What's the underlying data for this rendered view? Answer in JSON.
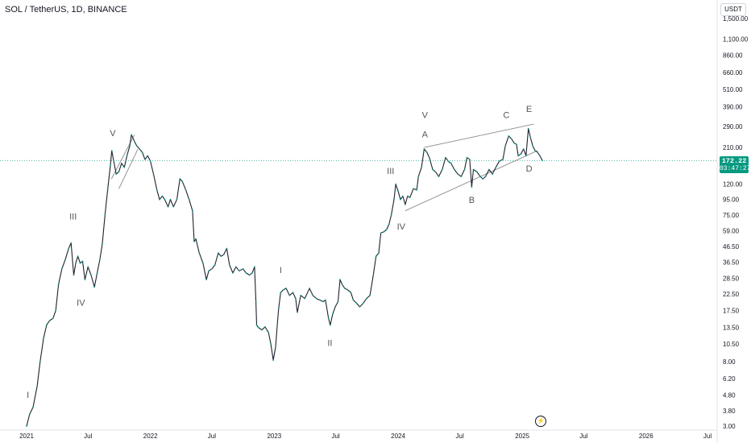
{
  "header": {
    "title": "SOL / TetherUS, 1D, BINANCE",
    "unit": "USDT"
  },
  "current_price": {
    "value": "172.22",
    "countdown": "03:47:27",
    "color": "#089981"
  },
  "colors": {
    "up": "#089981",
    "wave_label": "#555555",
    "trendline": "#8a8a8a",
    "axis_text": "#131722",
    "price_line": "#089981"
  },
  "icons": {
    "replay": "lightning-circle-icon"
  },
  "chart_data": {
    "type": "line",
    "scale": "log",
    "title": "",
    "xlabel": "",
    "ylabel": "",
    "ylim": [
      3.0,
      1500
    ],
    "xlim": [
      "2021-01-01",
      "2026-07-01"
    ],
    "grid": false,
    "x_ticks": [
      {
        "date": "2021-01-01",
        "label": "2021"
      },
      {
        "date": "2021-07-01",
        "label": "Jul"
      },
      {
        "date": "2022-01-01",
        "label": "2022"
      },
      {
        "date": "2022-07-01",
        "label": "Jul"
      },
      {
        "date": "2023-01-01",
        "label": "2023"
      },
      {
        "date": "2023-07-01",
        "label": "Jul"
      },
      {
        "date": "2024-01-01",
        "label": "2024"
      },
      {
        "date": "2024-07-01",
        "label": "Jul"
      },
      {
        "date": "2025-01-01",
        "label": "2025"
      },
      {
        "date": "2025-07-01",
        "label": "Jul"
      },
      {
        "date": "2026-01-01",
        "label": "2026"
      },
      {
        "date": "2026-07-01",
        "label": "Jul"
      }
    ],
    "y_ticks": [
      1500,
      1100,
      860,
      660,
      510,
      390,
      290,
      210,
      120,
      95,
      75,
      59,
      46.5,
      36.5,
      28.5,
      22.5,
      17.5,
      13.5,
      10.5,
      8.0,
      6.2,
      4.8,
      3.8,
      3.0
    ],
    "y_tick_labels": [
      "1,500.00",
      "1,100.00",
      "860.00",
      "660.00",
      "510.00",
      "390.00",
      "290.00",
      "210.00",
      "120.00",
      "95.00",
      "75.00",
      "59.00",
      "46.50",
      "36.50",
      "28.50",
      "22.50",
      "17.50",
      "13.50",
      "10.50",
      "8.00",
      "6.20",
      "4.80",
      "3.80",
      "3.00"
    ],
    "series": [
      {
        "values": [
          [
            "2021-01-01",
            3.0
          ],
          [
            "2021-01-10",
            3.6
          ],
          [
            "2021-01-20",
            4.0
          ],
          [
            "2021-02-01",
            5.5
          ],
          [
            "2021-02-10",
            8.0
          ],
          [
            "2021-02-20",
            11.5
          ],
          [
            "2021-03-01",
            14.0
          ],
          [
            "2021-03-10",
            15.0
          ],
          [
            "2021-03-20",
            15.5
          ],
          [
            "2021-03-28",
            17.5
          ],
          [
            "2021-04-05",
            26.0
          ],
          [
            "2021-04-15",
            33.0
          ],
          [
            "2021-04-25",
            38.0
          ],
          [
            "2021-05-05",
            45.0
          ],
          [
            "2021-05-12",
            49.0
          ],
          [
            "2021-05-20",
            30.0
          ],
          [
            "2021-05-26",
            36.0
          ],
          [
            "2021-06-01",
            40.0
          ],
          [
            "2021-06-08",
            36.0
          ],
          [
            "2021-06-15",
            37.0
          ],
          [
            "2021-06-22",
            28.0
          ],
          [
            "2021-07-01",
            34.0
          ],
          [
            "2021-07-10",
            30.0
          ],
          [
            "2021-07-20",
            25.0
          ],
          [
            "2021-07-28",
            31.0
          ],
          [
            "2021-08-05",
            38.0
          ],
          [
            "2021-08-12",
            48.0
          ],
          [
            "2021-08-20",
            75.0
          ],
          [
            "2021-08-28",
            110.0
          ],
          [
            "2021-09-05",
            160.0
          ],
          [
            "2021-09-09",
            200.0
          ],
          [
            "2021-09-15",
            170.0
          ],
          [
            "2021-09-22",
            140.0
          ],
          [
            "2021-09-30",
            145.0
          ],
          [
            "2021-10-08",
            165.0
          ],
          [
            "2021-10-16",
            155.0
          ],
          [
            "2021-10-24",
            185.0
          ],
          [
            "2021-11-01",
            215.0
          ],
          [
            "2021-11-06",
            255.0
          ],
          [
            "2021-11-15",
            230.0
          ],
          [
            "2021-11-22",
            215.0
          ],
          [
            "2021-11-30",
            205.0
          ],
          [
            "2021-12-08",
            195.0
          ],
          [
            "2021-12-16",
            175.0
          ],
          [
            "2021-12-24",
            185.0
          ],
          [
            "2022-01-01",
            170.0
          ],
          [
            "2022-01-10",
            140.0
          ],
          [
            "2022-01-20",
            110.0
          ],
          [
            "2022-01-28",
            95.0
          ],
          [
            "2022-02-05",
            100.0
          ],
          [
            "2022-02-12",
            95.0
          ],
          [
            "2022-02-22",
            85.0
          ],
          [
            "2022-03-01",
            95.0
          ],
          [
            "2022-03-10",
            85.0
          ],
          [
            "2022-03-20",
            95.0
          ],
          [
            "2022-03-29",
            130.0
          ],
          [
            "2022-04-05",
            125.0
          ],
          [
            "2022-04-15",
            110.0
          ],
          [
            "2022-04-25",
            95.0
          ],
          [
            "2022-05-05",
            80.0
          ],
          [
            "2022-05-10",
            50.0
          ],
          [
            "2022-05-15",
            52.0
          ],
          [
            "2022-05-25",
            42.0
          ],
          [
            "2022-06-05",
            36.0
          ],
          [
            "2022-06-15",
            28.0
          ],
          [
            "2022-06-22",
            32.0
          ],
          [
            "2022-07-01",
            33.0
          ],
          [
            "2022-07-10",
            35.0
          ],
          [
            "2022-07-20",
            42.0
          ],
          [
            "2022-07-28",
            40.0
          ],
          [
            "2022-08-05",
            41.0
          ],
          [
            "2022-08-14",
            45.0
          ],
          [
            "2022-08-22",
            35.0
          ],
          [
            "2022-09-01",
            31.0
          ],
          [
            "2022-09-10",
            34.0
          ],
          [
            "2022-09-20",
            32.0
          ],
          [
            "2022-10-01",
            33.0
          ],
          [
            "2022-10-10",
            31.0
          ],
          [
            "2022-10-20",
            30.0
          ],
          [
            "2022-10-28",
            31.0
          ],
          [
            "2022-11-04",
            34.0
          ],
          [
            "2022-11-08",
            20.0
          ],
          [
            "2022-11-10",
            14.0
          ],
          [
            "2022-11-15",
            13.5
          ],
          [
            "2022-11-25",
            13.0
          ],
          [
            "2022-12-05",
            13.6
          ],
          [
            "2022-12-15",
            12.5
          ],
          [
            "2022-12-22",
            10.5
          ],
          [
            "2022-12-29",
            8.2
          ],
          [
            "2023-01-05",
            10.0
          ],
          [
            "2023-01-10",
            14.0
          ],
          [
            "2023-01-14",
            18.0
          ],
          [
            "2023-01-20",
            23.0
          ],
          [
            "2023-01-28",
            24.0
          ],
          [
            "2023-02-05",
            24.5
          ],
          [
            "2023-02-15",
            22.0
          ],
          [
            "2023-02-25",
            23.0
          ],
          [
            "2023-03-05",
            21.0
          ],
          [
            "2023-03-10",
            17.0
          ],
          [
            "2023-03-20",
            22.0
          ],
          [
            "2023-04-01",
            21.0
          ],
          [
            "2023-04-15",
            24.5
          ],
          [
            "2023-04-25",
            22.0
          ],
          [
            "2023-05-05",
            21.0
          ],
          [
            "2023-05-15",
            20.5
          ],
          [
            "2023-05-25",
            20.0
          ],
          [
            "2023-06-01",
            20.5
          ],
          [
            "2023-06-10",
            15.5
          ],
          [
            "2023-06-15",
            14.0
          ],
          [
            "2023-06-22",
            16.5
          ],
          [
            "2023-06-30",
            18.5
          ],
          [
            "2023-07-08",
            20.0
          ],
          [
            "2023-07-14",
            28.0
          ],
          [
            "2023-07-20",
            26.0
          ],
          [
            "2023-07-28",
            24.5
          ],
          [
            "2023-08-05",
            24.0
          ],
          [
            "2023-08-15",
            23.0
          ],
          [
            "2023-08-22",
            20.5
          ],
          [
            "2023-09-01",
            19.5
          ],
          [
            "2023-09-10",
            18.5
          ],
          [
            "2023-09-20",
            19.5
          ],
          [
            "2023-09-30",
            21.0
          ],
          [
            "2023-10-10",
            22.0
          ],
          [
            "2023-10-20",
            30.0
          ],
          [
            "2023-10-28",
            40.0
          ],
          [
            "2023-11-05",
            42.0
          ],
          [
            "2023-11-11",
            57.0
          ],
          [
            "2023-11-20",
            58.0
          ],
          [
            "2023-11-28",
            60.0
          ],
          [
            "2023-12-05",
            65.0
          ],
          [
            "2023-12-12",
            75.0
          ],
          [
            "2023-12-20",
            95.0
          ],
          [
            "2023-12-25",
            120.0
          ],
          [
            "2024-01-01",
            108.0
          ],
          [
            "2024-01-08",
            95.0
          ],
          [
            "2024-01-15",
            100.0
          ],
          [
            "2024-01-22",
            88.0
          ],
          [
            "2024-01-29",
            100.0
          ],
          [
            "2024-02-05",
            98.0
          ],
          [
            "2024-02-15",
            112.0
          ],
          [
            "2024-02-25",
            110.0
          ],
          [
            "2024-03-01",
            135.0
          ],
          [
            "2024-03-10",
            155.0
          ],
          [
            "2024-03-18",
            205.0
          ],
          [
            "2024-03-26",
            195.0
          ],
          [
            "2024-04-02",
            180.0
          ],
          [
            "2024-04-12",
            150.0
          ],
          [
            "2024-04-20",
            145.0
          ],
          [
            "2024-04-30",
            135.0
          ],
          [
            "2024-05-10",
            150.0
          ],
          [
            "2024-05-20",
            180.0
          ],
          [
            "2024-05-28",
            170.0
          ],
          [
            "2024-06-05",
            165.0
          ],
          [
            "2024-06-15",
            150.0
          ],
          [
            "2024-06-25",
            140.0
          ],
          [
            "2024-07-05",
            135.0
          ],
          [
            "2024-07-15",
            150.0
          ],
          [
            "2024-07-22",
            180.0
          ],
          [
            "2024-07-30",
            175.0
          ],
          [
            "2024-08-05",
            115.0
          ],
          [
            "2024-08-10",
            150.0
          ],
          [
            "2024-08-20",
            145.0
          ],
          [
            "2024-08-30",
            135.0
          ],
          [
            "2024-09-07",
            130.0
          ],
          [
            "2024-09-15",
            135.0
          ],
          [
            "2024-09-25",
            150.0
          ],
          [
            "2024-10-05",
            140.0
          ],
          [
            "2024-10-15",
            155.0
          ],
          [
            "2024-10-25",
            170.0
          ],
          [
            "2024-11-05",
            175.0
          ],
          [
            "2024-11-12",
            215.0
          ],
          [
            "2024-11-22",
            250.0
          ],
          [
            "2024-11-30",
            240.0
          ],
          [
            "2024-12-08",
            225.0
          ],
          [
            "2024-12-15",
            220.0
          ],
          [
            "2024-12-20",
            185.0
          ],
          [
            "2024-12-28",
            190.0
          ],
          [
            "2025-01-05",
            205.0
          ],
          [
            "2025-01-12",
            185.0
          ],
          [
            "2025-01-19",
            280.0
          ],
          [
            "2025-01-25",
            245.0
          ],
          [
            "2025-02-01",
            215.0
          ],
          [
            "2025-02-08",
            200.0
          ],
          [
            "2025-02-15",
            195.0
          ],
          [
            "2025-02-22",
            185.0
          ],
          [
            "2025-03-01",
            172.22
          ]
        ]
      }
    ],
    "annotations": [
      {
        "text": "I",
        "date": "2021-01-05",
        "price": 4.6
      },
      {
        "text": "III",
        "date": "2021-05-18",
        "price": 70.0
      },
      {
        "text": "IV",
        "date": "2021-06-10",
        "price": 18.8
      },
      {
        "text": "V",
        "date": "2021-09-12",
        "price": 250.0
      },
      {
        "text": "I",
        "date": "2023-01-20",
        "price": 31.0
      },
      {
        "text": "II",
        "date": "2023-06-14",
        "price": 10.2
      },
      {
        "text": "III",
        "date": "2023-12-10",
        "price": 140.0
      },
      {
        "text": "IV",
        "date": "2024-01-10",
        "price": 60.0
      },
      {
        "text": "V",
        "date": "2024-03-20",
        "price": 330.0
      },
      {
        "text": "A",
        "date": "2024-03-20",
        "price": 245.0
      },
      {
        "text": "B",
        "date": "2024-08-05",
        "price": 90.0
      },
      {
        "text": "C",
        "date": "2024-11-15",
        "price": 330.0
      },
      {
        "text": "D",
        "date": "2025-01-21",
        "price": 145.0
      },
      {
        "text": "E",
        "date": "2025-01-21",
        "price": 360.0
      }
    ],
    "trendlines": [
      {
        "from": [
          "2021-09-08",
          130.0
        ],
        "to": [
          "2021-11-15",
          255.0
        ]
      },
      {
        "from": [
          "2021-09-30",
          112.0
        ],
        "to": [
          "2021-11-25",
          205.0
        ]
      },
      {
        "from": [
          "2024-03-18",
          210.0
        ],
        "to": [
          "2025-02-04",
          300.0
        ]
      },
      {
        "from": [
          "2024-01-22",
          80.0
        ],
        "to": [
          "2025-02-15",
          200.0
        ]
      }
    ]
  }
}
